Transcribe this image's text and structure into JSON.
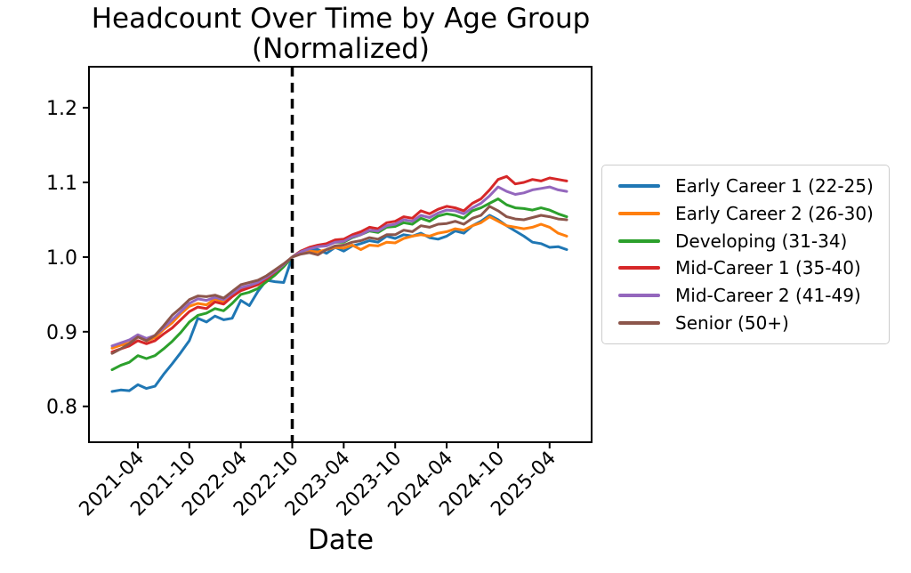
{
  "chart": {
    "title_line1": "Headcount Over Time by Age Group",
    "title_line2": "(Normalized)",
    "xlabel": "Date"
  },
  "chart_data": {
    "type": "line",
    "title": "Headcount Over Time by Age Group (Normalized)",
    "xlabel": "Date",
    "ylabel": "",
    "grid": false,
    "legend_position": "right-outside",
    "y_ticks": [
      0.8,
      0.9,
      1.0,
      1.1,
      1.2
    ],
    "y_tick_labels": [
      "0.8",
      "0.9",
      "1.0",
      "1.1",
      "1.2"
    ],
    "ylim": [
      0.752,
      1.255
    ],
    "xlim_months": [
      -2.7,
      55.9
    ],
    "x_tick_month_indices": [
      3,
      9,
      15,
      21,
      27,
      33,
      39,
      45,
      51
    ],
    "x_tick_labels": [
      "2021-04",
      "2021-10",
      "2022-04",
      "2022-10",
      "2023-04",
      "2023-10",
      "2024-04",
      "2024-10",
      "2025-04"
    ],
    "x": [
      "2021-01",
      "2021-02",
      "2021-03",
      "2021-04",
      "2021-05",
      "2021-06",
      "2021-07",
      "2021-08",
      "2021-09",
      "2021-10",
      "2021-11",
      "2021-12",
      "2022-01",
      "2022-02",
      "2022-03",
      "2022-04",
      "2022-05",
      "2022-06",
      "2022-07",
      "2022-08",
      "2022-09",
      "2022-10",
      "2022-11",
      "2022-12",
      "2023-01",
      "2023-02",
      "2023-03",
      "2023-04",
      "2023-05",
      "2023-06",
      "2023-07",
      "2023-08",
      "2023-09",
      "2023-10",
      "2023-11",
      "2023-12",
      "2024-01",
      "2024-02",
      "2024-03",
      "2024-04",
      "2024-05",
      "2024-06",
      "2024-07",
      "2024-08",
      "2024-09",
      "2024-10",
      "2024-11",
      "2024-12",
      "2025-01",
      "2025-02",
      "2025-03",
      "2025-04",
      "2025-05",
      "2025-06"
    ],
    "reference_line": {
      "x": "2022-10",
      "x_month_index": 21,
      "style": "dashed",
      "color": "#000000"
    },
    "normalized_at": "2022-10",
    "series": [
      {
        "name": "Early Career 1 (22-25)",
        "color": "#1f77b4",
        "values": [
          0.82,
          0.822,
          0.821,
          0.829,
          0.824,
          0.827,
          0.843,
          0.857,
          0.872,
          0.888,
          0.918,
          0.913,
          0.921,
          0.916,
          0.918,
          0.942,
          0.935,
          0.954,
          0.969,
          0.967,
          0.966,
          1.0,
          1.007,
          1.01,
          1.01,
          1.005,
          1.013,
          1.008,
          1.015,
          1.018,
          1.022,
          1.02,
          1.028,
          1.025,
          1.03,
          1.028,
          1.032,
          1.026,
          1.024,
          1.028,
          1.035,
          1.032,
          1.042,
          1.048,
          1.056,
          1.05,
          1.042,
          1.035,
          1.028,
          1.02,
          1.018,
          1.013,
          1.014,
          1.01
        ]
      },
      {
        "name": "Early Career 2 (26-30)",
        "color": "#ff7f0e",
        "values": [
          0.878,
          0.882,
          0.885,
          0.894,
          0.888,
          0.892,
          0.903,
          0.912,
          0.924,
          0.934,
          0.938,
          0.936,
          0.944,
          0.94,
          0.949,
          0.957,
          0.96,
          0.964,
          0.971,
          0.979,
          0.989,
          1.0,
          1.005,
          1.008,
          1.007,
          1.01,
          1.013,
          1.012,
          1.016,
          1.01,
          1.016,
          1.015,
          1.02,
          1.019,
          1.025,
          1.028,
          1.03,
          1.028,
          1.032,
          1.034,
          1.038,
          1.036,
          1.042,
          1.046,
          1.054,
          1.048,
          1.042,
          1.04,
          1.038,
          1.04,
          1.044,
          1.04,
          1.032,
          1.028
        ]
      },
      {
        "name": "Developing (31-34)",
        "color": "#2ca02c",
        "values": [
          0.849,
          0.855,
          0.859,
          0.868,
          0.864,
          0.868,
          0.877,
          0.887,
          0.899,
          0.913,
          0.922,
          0.925,
          0.931,
          0.928,
          0.938,
          0.95,
          0.953,
          0.958,
          0.967,
          0.976,
          0.987,
          1.0,
          1.008,
          1.012,
          1.014,
          1.016,
          1.02,
          1.02,
          1.026,
          1.03,
          1.035,
          1.033,
          1.04,
          1.041,
          1.046,
          1.044,
          1.052,
          1.048,
          1.055,
          1.058,
          1.056,
          1.052,
          1.062,
          1.066,
          1.072,
          1.078,
          1.07,
          1.066,
          1.065,
          1.063,
          1.066,
          1.063,
          1.058,
          1.054
        ]
      },
      {
        "name": "Mid-Career 1 (35-40)",
        "color": "#d62728",
        "values": [
          0.873,
          0.877,
          0.881,
          0.888,
          0.884,
          0.888,
          0.897,
          0.905,
          0.916,
          0.927,
          0.933,
          0.931,
          0.94,
          0.937,
          0.947,
          0.955,
          0.959,
          0.963,
          0.971,
          0.98,
          0.99,
          1.0,
          1.008,
          1.013,
          1.016,
          1.018,
          1.023,
          1.024,
          1.03,
          1.034,
          1.04,
          1.038,
          1.046,
          1.048,
          1.054,
          1.052,
          1.062,
          1.058,
          1.064,
          1.068,
          1.066,
          1.062,
          1.072,
          1.078,
          1.09,
          1.104,
          1.108,
          1.098,
          1.1,
          1.104,
          1.102,
          1.106,
          1.104,
          1.102
        ]
      },
      {
        "name": "Mid-Career 2 (41-49)",
        "color": "#9467bd",
        "values": [
          0.881,
          0.885,
          0.889,
          0.896,
          0.891,
          0.895,
          0.905,
          0.916,
          0.927,
          0.938,
          0.944,
          0.942,
          0.946,
          0.943,
          0.951,
          0.959,
          0.962,
          0.966,
          0.973,
          0.981,
          0.99,
          1.0,
          1.007,
          1.011,
          1.014,
          1.015,
          1.02,
          1.021,
          1.027,
          1.03,
          1.036,
          1.035,
          1.042,
          1.044,
          1.05,
          1.048,
          1.056,
          1.053,
          1.059,
          1.063,
          1.062,
          1.058,
          1.066,
          1.072,
          1.082,
          1.094,
          1.088,
          1.084,
          1.086,
          1.09,
          1.092,
          1.094,
          1.09,
          1.088
        ]
      },
      {
        "name": "Senior (50+)",
        "color": "#8c564b",
        "values": [
          0.871,
          0.877,
          0.884,
          0.893,
          0.888,
          0.895,
          0.908,
          0.922,
          0.932,
          0.943,
          0.948,
          0.947,
          0.949,
          0.945,
          0.954,
          0.963,
          0.966,
          0.969,
          0.975,
          0.983,
          0.991,
          1.0,
          1.004,
          1.006,
          1.003,
          1.01,
          1.015,
          1.016,
          1.02,
          1.022,
          1.026,
          1.024,
          1.03,
          1.03,
          1.036,
          1.034,
          1.042,
          1.04,
          1.044,
          1.045,
          1.048,
          1.044,
          1.052,
          1.056,
          1.068,
          1.062,
          1.054,
          1.051,
          1.05,
          1.053,
          1.056,
          1.054,
          1.051,
          1.05
        ]
      }
    ],
    "style": {
      "line_width": 3,
      "spine_color": "#000000",
      "legend_border_color": "#cccccc",
      "background": "#ffffff"
    }
  }
}
